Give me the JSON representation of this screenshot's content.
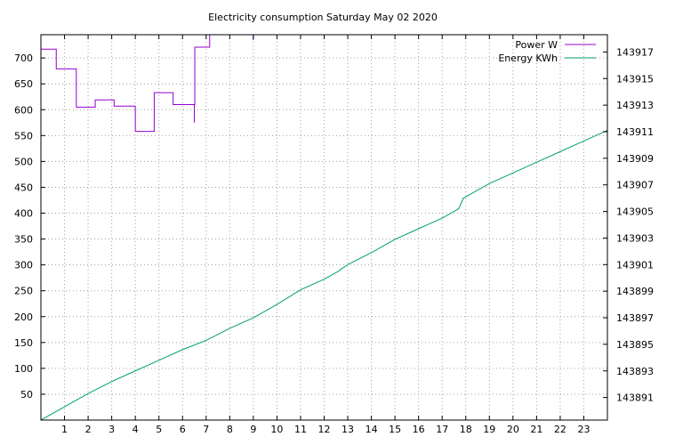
{
  "chart_data": {
    "type": "line",
    "title": "Electricity consumption Saturday May 02 2020",
    "x_ticks": [
      1,
      2,
      3,
      4,
      5,
      6,
      7,
      8,
      9,
      10,
      11,
      12,
      13,
      14,
      15,
      16,
      17,
      18,
      19,
      20,
      21,
      22,
      23
    ],
    "xlim": [
      0,
      24
    ],
    "y1_ticks": [
      50,
      100,
      150,
      200,
      250,
      300,
      350,
      400,
      450,
      500,
      550,
      600,
      650,
      700
    ],
    "y1lim": [
      0,
      745
    ],
    "y2_ticks": [
      143891,
      143893,
      143895,
      143897,
      143899,
      143901,
      143903,
      143905,
      143907,
      143909,
      143911,
      143913,
      143915,
      143917
    ],
    "y2lim": [
      143889.3,
      143918.3
    ],
    "grid": true,
    "legend_position": "top-right",
    "series": [
      {
        "name": "Power W",
        "axis": "left",
        "color": "#9400d3",
        "style": "step",
        "x": [
          0,
          0.65,
          1.5,
          2.3,
          3.1,
          4.0,
          4.8,
          5.6,
          6.5,
          6.5,
          6.52,
          7.15,
          7.15
        ],
        "y": [
          717,
          679,
          605,
          619,
          607,
          558,
          633,
          610,
          575,
          610,
          721,
          745,
          745
        ]
      },
      {
        "name": "Energy KWh",
        "axis": "right",
        "color": "#009e73",
        "style": "line",
        "x": [
          0,
          1,
          2,
          3,
          4,
          5,
          6,
          7,
          8,
          9,
          10,
          11,
          12,
          12.6,
          12.75,
          13,
          14,
          14.6,
          14.7,
          15,
          16,
          17,
          17.7,
          17.9,
          18,
          19,
          20,
          21,
          22,
          23,
          24
        ],
        "y": [
          143889.3,
          143890.3,
          143891.3,
          143892.2,
          143893,
          143893.8,
          143894.6,
          143895.3,
          143896.2,
          143897,
          143898,
          143899.1,
          143899.9,
          143900.5,
          143900.7,
          143901,
          143901.9,
          143902.5,
          143902.6,
          143902.9,
          143903.7,
          143904.5,
          143905.2,
          143906,
          143906.1,
          143907.1,
          143907.9,
          143908.7,
          143909.5,
          143910.3,
          143911.1
        ]
      }
    ]
  }
}
